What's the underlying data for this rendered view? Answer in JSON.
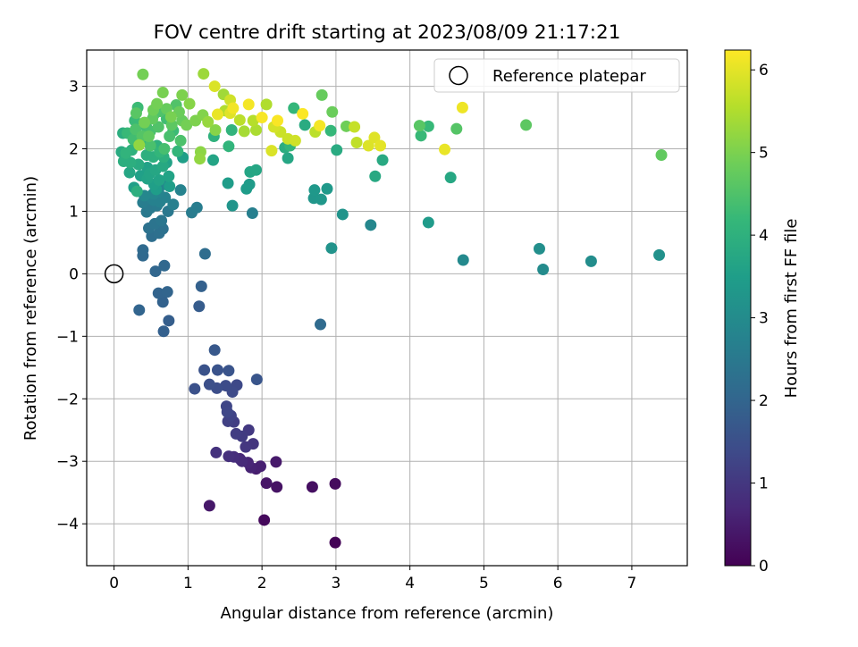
{
  "chart_data": {
    "type": "scatter",
    "title": "FOV centre drift starting at 2023/08/09 21:17:21",
    "xlabel": "Angular distance from reference (arcmin)",
    "ylabel": "Rotation from reference (arcmin)",
    "xlim": [
      -0.37,
      7.75
    ],
    "ylim": [
      -4.67,
      3.58
    ],
    "xticks": [
      0,
      1,
      2,
      3,
      4,
      5,
      6,
      7
    ],
    "xtick_labels": [
      "0",
      "1",
      "2",
      "3",
      "4",
      "5",
      "6",
      "7"
    ],
    "yticks": [
      -4,
      -3,
      -2,
      -1,
      0,
      1,
      2,
      3
    ],
    "ytick_labels": [
      "−4",
      "−3",
      "−2",
      "−1",
      "0",
      "1",
      "2",
      "3"
    ],
    "grid": true,
    "legend": {
      "position": "top-right",
      "entries": [
        "Reference platepar"
      ]
    },
    "reference_point": {
      "x": 0,
      "y": 0,
      "label": "Reference platepar"
    },
    "colorbar": {
      "label": "Hours from first FF file",
      "range": [
        0,
        6.24
      ],
      "ticks": [
        0,
        1,
        2,
        3,
        4,
        5,
        6
      ],
      "tick_labels": [
        "0",
        "1",
        "2",
        "3",
        "4",
        "5",
        "6"
      ],
      "colormap": "viridis"
    },
    "points": [
      [
        2.99,
        -4.3,
        0.05
      ],
      [
        2.03,
        -3.94,
        0.15
      ],
      [
        2.99,
        -3.36,
        0.2
      ],
      [
        2.68,
        -3.41,
        0.25
      ],
      [
        2.2,
        -3.41,
        0.3
      ],
      [
        2.06,
        -3.35,
        0.35
      ],
      [
        1.29,
        -3.71,
        0.4
      ],
      [
        2.19,
        -3.01,
        0.45
      ],
      [
        1.92,
        -3.12,
        0.5
      ],
      [
        1.98,
        -3.08,
        0.55
      ],
      [
        1.85,
        -3.1,
        0.6
      ],
      [
        1.81,
        -3.02,
        0.65
      ],
      [
        1.7,
        -2.96,
        0.7
      ],
      [
        1.73,
        -3.0,
        0.75
      ],
      [
        1.62,
        -2.93,
        0.8
      ],
      [
        1.55,
        -2.92,
        0.85
      ],
      [
        1.38,
        -2.86,
        0.9
      ],
      [
        1.88,
        -2.72,
        0.95
      ],
      [
        1.78,
        -2.77,
        1.0
      ],
      [
        1.82,
        -2.5,
        1.05
      ],
      [
        1.73,
        -2.6,
        1.08
      ],
      [
        1.65,
        -2.56,
        1.12
      ],
      [
        1.62,
        -2.37,
        1.15
      ],
      [
        1.54,
        -2.36,
        1.2
      ],
      [
        1.58,
        -2.27,
        1.25
      ],
      [
        1.52,
        -2.12,
        1.3
      ],
      [
        1.53,
        -2.21,
        1.33
      ],
      [
        1.66,
        -1.78,
        1.36
      ],
      [
        1.6,
        -1.89,
        1.4
      ],
      [
        1.51,
        -1.79,
        1.44
      ],
      [
        1.39,
        -1.83,
        1.48
      ],
      [
        1.29,
        -1.77,
        1.52
      ],
      [
        1.09,
        -1.84,
        1.55
      ],
      [
        1.22,
        -1.54,
        1.58
      ],
      [
        1.4,
        -1.54,
        1.6
      ],
      [
        1.55,
        -1.55,
        1.62
      ],
      [
        1.93,
        -1.69,
        1.65
      ],
      [
        1.36,
        -1.22,
        1.7
      ],
      [
        1.15,
        -0.52,
        1.8
      ],
      [
        0.74,
        -0.75,
        1.85
      ],
      [
        0.67,
        -0.92,
        1.9
      ],
      [
        1.18,
        -0.2,
        1.92
      ],
      [
        0.66,
        -0.45,
        1.95
      ],
      [
        0.6,
        -0.31,
        1.98
      ],
      [
        0.72,
        -0.29,
        2.0
      ],
      [
        0.34,
        -0.58,
        2.02
      ],
      [
        0.56,
        0.04,
        2.05
      ],
      [
        0.68,
        0.13,
        2.08
      ],
      [
        0.39,
        0.29,
        2.1
      ],
      [
        0.39,
        0.38,
        2.12
      ],
      [
        2.79,
        -0.81,
        2.15
      ],
      [
        1.23,
        0.32,
        2.2
      ],
      [
        0.51,
        0.6,
        2.25
      ],
      [
        0.61,
        0.65,
        2.3
      ],
      [
        0.66,
        0.72,
        2.32
      ],
      [
        0.47,
        0.73,
        2.35
      ],
      [
        0.55,
        0.8,
        2.4
      ],
      [
        0.64,
        0.85,
        2.45
      ],
      [
        0.73,
        1.0,
        2.5
      ],
      [
        0.44,
        0.99,
        2.52
      ],
      [
        0.49,
        1.05,
        2.55
      ],
      [
        0.58,
        1.09,
        2.58
      ],
      [
        1.05,
        0.98,
        2.6
      ],
      [
        1.12,
        1.06,
        2.65
      ],
      [
        1.87,
        0.97,
        2.7
      ],
      [
        0.8,
        1.11,
        2.72
      ],
      [
        0.62,
        1.15,
        2.75
      ],
      [
        0.69,
        1.22,
        2.78
      ],
      [
        0.9,
        1.34,
        2.8
      ],
      [
        0.6,
        1.31,
        2.82
      ],
      [
        0.67,
        1.43,
        2.85
      ],
      [
        0.53,
        1.28,
        2.88
      ],
      [
        3.47,
        0.78,
        2.9
      ],
      [
        4.72,
        0.22,
        2.95
      ],
      [
        5.8,
        0.07,
        3.0
      ],
      [
        6.45,
        0.2,
        3.05
      ],
      [
        5.75,
        0.4,
        3.1
      ],
      [
        7.37,
        0.3,
        3.15
      ],
      [
        2.94,
        0.41,
        3.2
      ],
      [
        3.09,
        0.95,
        3.22
      ],
      [
        1.6,
        1.09,
        3.25
      ],
      [
        2.7,
        1.21,
        3.28
      ],
      [
        2.8,
        1.19,
        3.3
      ],
      [
        2.71,
        1.34,
        3.33
      ],
      [
        2.88,
        1.36,
        3.35
      ],
      [
        4.25,
        0.82,
        3.38
      ],
      [
        1.83,
        1.43,
        3.4
      ],
      [
        1.79,
        1.36,
        3.42
      ],
      [
        1.54,
        1.45,
        3.45
      ],
      [
        0.75,
        1.4,
        3.48
      ],
      [
        0.93,
        1.86,
        3.5
      ],
      [
        0.36,
        1.57,
        3.52
      ],
      [
        0.45,
        1.7,
        3.55
      ],
      [
        0.71,
        1.78,
        3.58
      ],
      [
        0.74,
        1.56,
        3.6
      ],
      [
        1.34,
        1.82,
        3.62
      ],
      [
        1.84,
        1.63,
        3.65
      ],
      [
        1.92,
        1.66,
        3.68
      ],
      [
        2.35,
        1.85,
        3.7
      ],
      [
        4.55,
        1.54,
        3.72
      ],
      [
        3.53,
        1.56,
        3.75
      ],
      [
        3.63,
        1.82,
        3.78
      ],
      [
        3.01,
        1.98,
        3.8
      ],
      [
        2.58,
        2.38,
        3.82
      ],
      [
        2.31,
        2.02,
        3.85
      ],
      [
        0.12,
        2.25,
        3.88
      ],
      [
        0.22,
        1.78,
        3.9
      ],
      [
        0.31,
        1.32,
        3.92
      ],
      [
        0.53,
        1.87,
        3.95
      ],
      [
        0.58,
        2.05,
        3.97
      ],
      [
        1.35,
        2.2,
        4.0
      ],
      [
        1.59,
        2.3,
        4.05
      ],
      [
        1.55,
        2.04,
        4.08
      ],
      [
        2.38,
        2.05,
        4.1
      ],
      [
        2.43,
        2.65,
        4.12
      ],
      [
        2.93,
        2.29,
        4.15
      ],
      [
        4.25,
        2.36,
        4.18
      ],
      [
        4.15,
        2.21,
        4.2
      ],
      [
        0.28,
        2.45,
        4.22
      ],
      [
        0.32,
        2.66,
        4.25
      ],
      [
        0.54,
        2.55,
        4.28
      ],
      [
        0.71,
        2.48,
        4.3
      ],
      [
        0.26,
        2.15,
        4.32
      ],
      [
        0.44,
        2.34,
        4.35
      ],
      [
        0.68,
        2.0,
        4.38
      ],
      [
        0.75,
        2.2,
        4.4
      ],
      [
        0.49,
        2.05,
        4.42
      ],
      [
        0.9,
        2.13,
        4.45
      ],
      [
        0.62,
        2.6,
        4.48
      ],
      [
        0.84,
        2.7,
        4.5
      ],
      [
        4.63,
        2.32,
        4.55
      ],
      [
        4.13,
        2.37,
        4.6
      ],
      [
        5.57,
        2.38,
        4.65
      ],
      [
        7.4,
        1.9,
        4.7
      ],
      [
        2.81,
        2.86,
        4.75
      ],
      [
        2.95,
        2.59,
        4.8
      ],
      [
        3.14,
        2.36,
        4.85
      ],
      [
        0.39,
        3.19,
        4.9
      ],
      [
        0.66,
        2.9,
        4.95
      ],
      [
        0.92,
        2.86,
        5.0
      ],
      [
        1.2,
        2.54,
        5.05
      ],
      [
        1.37,
        2.3,
        5.1
      ],
      [
        1.17,
        1.95,
        5.15
      ],
      [
        0.34,
        2.06,
        5.2
      ],
      [
        1.21,
        3.2,
        5.3
      ],
      [
        1.48,
        2.87,
        5.35
      ],
      [
        1.76,
        2.28,
        5.4
      ],
      [
        1.92,
        2.3,
        5.45
      ],
      [
        2.06,
        2.71,
        5.5
      ],
      [
        2.72,
        2.27,
        5.6
      ],
      [
        3.28,
        2.1,
        5.65
      ],
      [
        3.25,
        2.35,
        5.7
      ],
      [
        2.35,
        2.16,
        5.75
      ],
      [
        2.45,
        2.13,
        5.8
      ],
      [
        2.17,
        2.35,
        5.85
      ],
      [
        2.13,
        1.97,
        5.9
      ],
      [
        3.44,
        2.05,
        5.92
      ],
      [
        3.52,
        2.18,
        5.95
      ],
      [
        3.6,
        2.05,
        6.0
      ],
      [
        4.47,
        1.99,
        6.05
      ],
      [
        4.71,
        2.66,
        6.1
      ],
      [
        1.61,
        2.65,
        6.12
      ],
      [
        1.82,
        2.71,
        6.15
      ],
      [
        2.0,
        2.5,
        6.18
      ],
      [
        2.21,
        2.45,
        6.2
      ],
      [
        2.55,
        2.56,
        6.22
      ],
      [
        2.78,
        2.37,
        6.15
      ],
      [
        1.4,
        2.55,
        6.05
      ],
      [
        1.36,
        3.0,
        5.9
      ],
      [
        1.57,
        2.78,
        5.8
      ],
      [
        0.3,
        2.57,
        4.6
      ],
      [
        0.18,
        2.25,
        4.2
      ],
      [
        0.1,
        1.95,
        3.8
      ],
      [
        0.21,
        1.62,
        3.7
      ],
      [
        0.57,
        1.35,
        3.45
      ],
      [
        0.13,
        1.8,
        3.9
      ],
      [
        0.47,
        2.2,
        4.7
      ],
      [
        0.41,
        2.42,
        4.9
      ],
      [
        0.6,
        2.35,
        4.5
      ],
      [
        0.78,
        2.38,
        4.65
      ],
      [
        0.88,
        2.59,
        4.8
      ],
      [
        0.67,
        1.87,
        3.95
      ],
      [
        0.45,
        1.52,
        3.6
      ],
      [
        0.39,
        1.14,
        2.65
      ],
      [
        0.8,
        2.29,
        4.25
      ],
      [
        0.58,
        2.72,
        4.9
      ],
      [
        0.52,
        2.48,
        4.7
      ],
      [
        0.24,
        1.98,
        4.0
      ],
      [
        1.02,
        2.72,
        5.1
      ],
      [
        1.1,
        2.45,
        5.0
      ],
      [
        1.27,
        2.43,
        5.25
      ],
      [
        1.5,
        2.61,
        5.5
      ],
      [
        1.7,
        2.46,
        5.6
      ],
      [
        1.88,
        2.45,
        5.55
      ],
      [
        2.25,
        2.27,
        5.75
      ],
      [
        0.98,
        2.38,
        4.9
      ],
      [
        0.86,
        1.96,
        4.1
      ],
      [
        0.33,
        1.75,
        3.8
      ],
      [
        0.44,
        1.9,
        3.95
      ],
      [
        0.56,
        1.66,
        3.7
      ],
      [
        0.61,
        1.5,
        3.6
      ],
      [
        0.66,
        1.72,
        3.75
      ],
      [
        0.49,
        2.28,
        4.4
      ],
      [
        0.36,
        2.1,
        4.15
      ],
      [
        0.16,
        1.93,
        4.05
      ],
      [
        0.27,
        1.38,
        3.5
      ],
      [
        1.16,
        1.84,
        5.2
      ],
      [
        2.16,
        2.35,
        5.85
      ],
      [
        1.57,
        2.57,
        5.95
      ],
      [
        0.71,
        2.64,
        4.75
      ],
      [
        0.38,
        2.2,
        4.55
      ],
      [
        0.29,
        2.31,
        4.45
      ],
      [
        0.53,
        2.62,
        4.85
      ],
      [
        0.77,
        2.51,
        4.95
      ],
      [
        0.92,
        2.45,
        4.75
      ],
      [
        0.62,
        1.95,
        4.1
      ],
      [
        0.48,
        1.6,
        3.62
      ],
      [
        0.54,
        1.43,
        3.5
      ],
      [
        0.41,
        1.25,
        2.9
      ],
      [
        0.53,
        1.18,
        2.75
      ]
    ]
  }
}
